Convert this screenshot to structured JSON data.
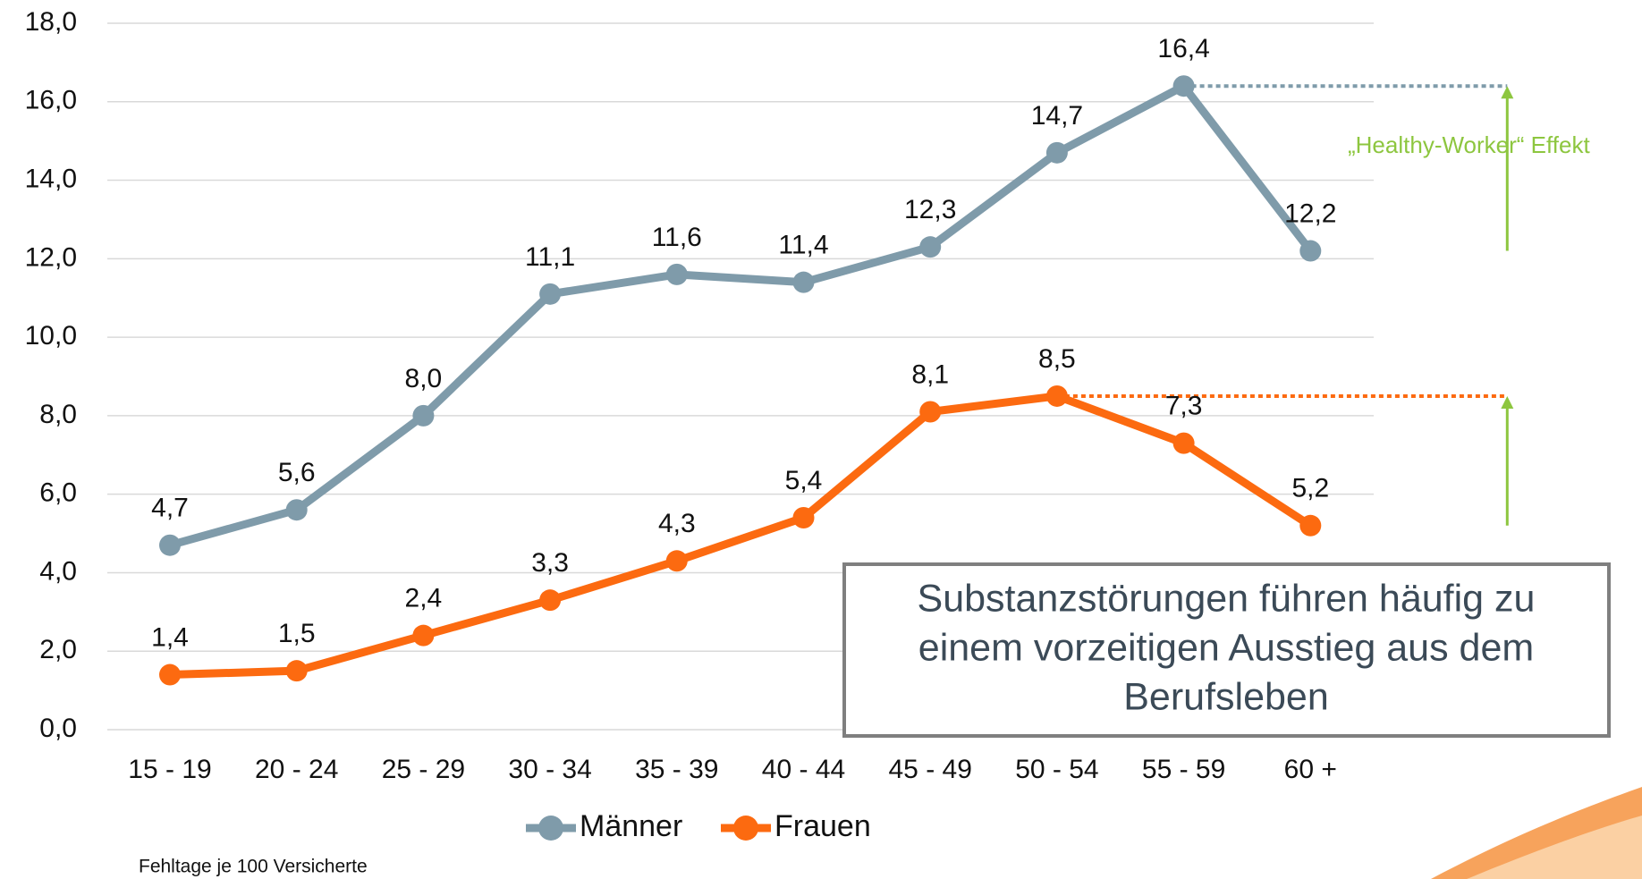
{
  "chart_data": {
    "type": "line",
    "categories": [
      "15 - 19",
      "20 - 24",
      "25 - 29",
      "30 - 34",
      "35 - 39",
      "40 - 44",
      "45 - 49",
      "50 - 54",
      "55 - 59",
      "60 +"
    ],
    "series": [
      {
        "name": "Männer",
        "color": "#7f9baa",
        "values": [
          4.7,
          5.6,
          8.0,
          11.1,
          11.6,
          11.4,
          12.3,
          14.7,
          16.4,
          12.2
        ],
        "value_labels": [
          "4,7",
          "5,6",
          "8,0",
          "11,1",
          "11,6",
          "11,4",
          "12,3",
          "14,7",
          "16,4",
          "12,2"
        ]
      },
      {
        "name": "Frauen",
        "color": "#fc6a10",
        "values": [
          1.4,
          1.5,
          2.4,
          3.3,
          4.3,
          5.4,
          8.1,
          8.5,
          7.3,
          5.2
        ],
        "value_labels": [
          "1,4",
          "1,5",
          "2,4",
          "3,3",
          "4,3",
          "5,4",
          "8,1",
          "8,5",
          "7,3",
          "5,2"
        ]
      }
    ],
    "ylim": [
      0,
      18
    ],
    "yticks": [
      {
        "value": 0,
        "label": "0,0"
      },
      {
        "value": 2,
        "label": "2,0"
      },
      {
        "value": 4,
        "label": "4,0"
      },
      {
        "value": 6,
        "label": "6,0"
      },
      {
        "value": 8,
        "label": "8,0"
      },
      {
        "value": 10,
        "label": "10,0"
      },
      {
        "value": 12,
        "label": "12,0"
      },
      {
        "value": 14,
        "label": "14,0"
      },
      {
        "value": 16,
        "label": "16,0"
      },
      {
        "value": 18,
        "label": "18,0"
      }
    ],
    "grid": true,
    "legend": "bottom",
    "annotation": "„Healthy-Worker“ Effekt",
    "annotation_color": "#8dc63f",
    "callout": [
      "Substanzstörungen führen häufig zu",
      "einem vorzeitigen Ausstieg aus dem",
      "Berufsleben"
    ],
    "footnote": "Fehltage je 100 Versicherte"
  }
}
